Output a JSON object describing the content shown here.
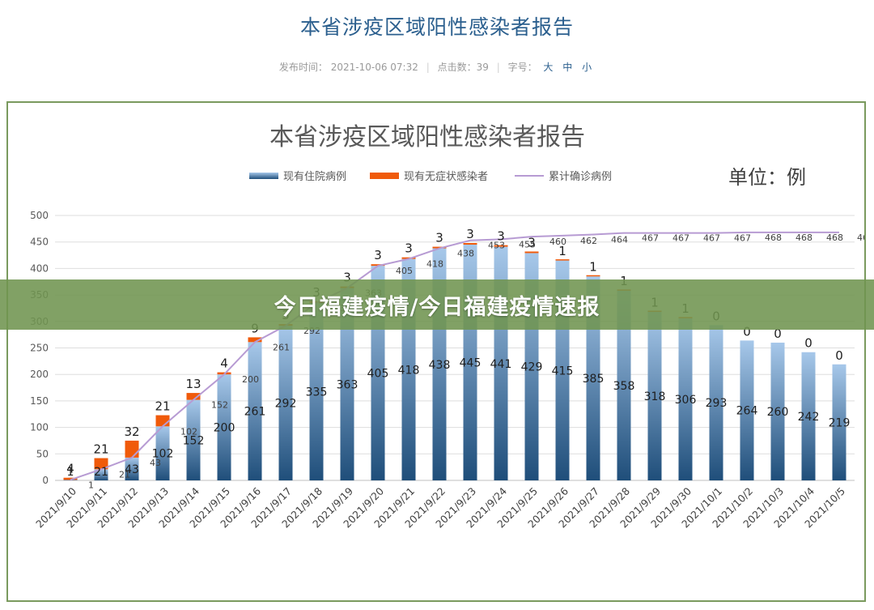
{
  "article": {
    "title": "本省涉疫区域阳性感染者报告",
    "meta_publish_label": "发布时间：",
    "meta_publish_time": "2021-10-06 07:32",
    "meta_clicks": "点击数：39",
    "meta_font_label": "字号：",
    "meta_font_sizes": [
      "大",
      "中",
      "小"
    ]
  },
  "banner": {
    "text": "今日福建疫情/今日福建疫情速报"
  },
  "colors": {
    "bar_hospital_top": "#a7c8ea",
    "bar_hospital_bottom": "#1f4e7a",
    "bar_asymptomatic": "#f05a0a",
    "line_cumulative": "#b79bd3",
    "banner": "#709450",
    "frame": "#7a9a5e",
    "title": "#2b5f8e"
  },
  "chart_data": {
    "type": "bar",
    "stacked": true,
    "title": "本省涉疫区域阳性感染者报告",
    "unit_label": "单位：例",
    "legend_position": "top-center",
    "grid": true,
    "ylim": [
      0,
      500
    ],
    "yticks": [
      0,
      50,
      100,
      150,
      200,
      250,
      300,
      350,
      400,
      450,
      500
    ],
    "categories": [
      "2021/9/10",
      "2021/9/11",
      "2021/9/12",
      "2021/9/13",
      "2021/9/14",
      "2021/9/15",
      "2021/9/16",
      "2021/9/17",
      "2021/9/18",
      "2021/9/19",
      "2021/9/20",
      "2021/9/21",
      "2021/9/22",
      "2021/9/23",
      "2021/9/24",
      "2021/9/25",
      "2021/9/26",
      "2021/9/27",
      "2021/9/28",
      "2021/9/29",
      "2021/9/30",
      "2021/10/1",
      "2021/10/2",
      "2021/10/3",
      "2021/10/4",
      "2021/10/5"
    ],
    "series": [
      {
        "name": "现有住院病例",
        "kind": "bar",
        "values": [
          1,
          21,
          43,
          102,
          152,
          200,
          261,
          292,
          335,
          363,
          405,
          418,
          438,
          445,
          441,
          429,
          415,
          385,
          358,
          318,
          306,
          293,
          264,
          260,
          242,
          219
        ]
      },
      {
        "name": "现有无症状感染者",
        "kind": "bar",
        "values": [
          4,
          21,
          32,
          21,
          13,
          4,
          9,
          3,
          3,
          3,
          3,
          3,
          3,
          3,
          3,
          3,
          1,
          1,
          1,
          1,
          1,
          0,
          0,
          0,
          0,
          0
        ]
      },
      {
        "name": "累计确诊病例",
        "kind": "line",
        "values": [
          1,
          21,
          43,
          102,
          152,
          200,
          261,
          292,
          335,
          363,
          405,
          418,
          438,
          453,
          455,
          460,
          462,
          464,
          467,
          467,
          467,
          467,
          468,
          468,
          468,
          468
        ]
      }
    ]
  }
}
